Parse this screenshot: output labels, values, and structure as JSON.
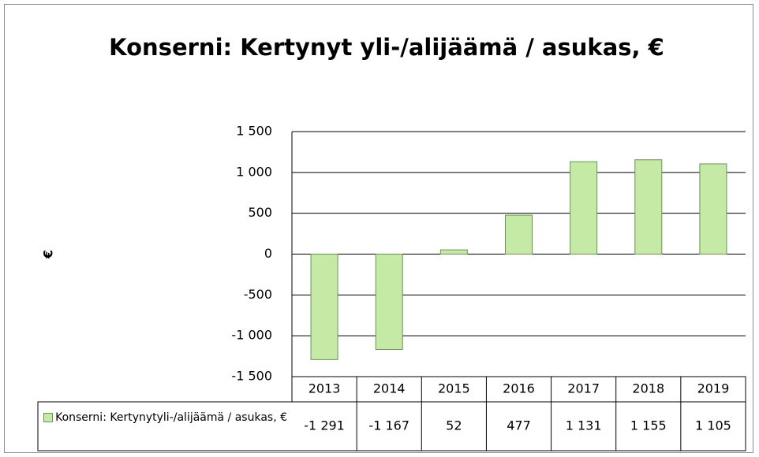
{
  "chart_data": {
    "type": "bar",
    "title": "Konserni: Kertynyt yli-/alijäämä  / asukas, €",
    "y_label": "€",
    "categories": [
      "2013",
      "2014",
      "2015",
      "2016",
      "2017",
      "2018",
      "2019"
    ],
    "series": [
      {
        "name": "Konserni: Kertynytyli-/alijäämä / asukas, €",
        "color": "#c4eaa5",
        "values": [
          -1291,
          -1167,
          52,
          477,
          1131,
          1155,
          1105
        ],
        "value_labels": [
          "-1 291",
          "-1 167",
          "52",
          "477",
          "1 131",
          "1 155",
          "1 105"
        ]
      }
    ],
    "ylim": [
      -1500,
      1500
    ],
    "yticks": [
      {
        "value": -1500,
        "label": "-1 500"
      },
      {
        "value": -1000,
        "label": "-1 000"
      },
      -500,
      0,
      500,
      {
        "value": 1000,
        "label": "1 000"
      },
      {
        "value": 1500,
        "label": "1 500"
      }
    ],
    "grid": true,
    "data_table": true
  }
}
